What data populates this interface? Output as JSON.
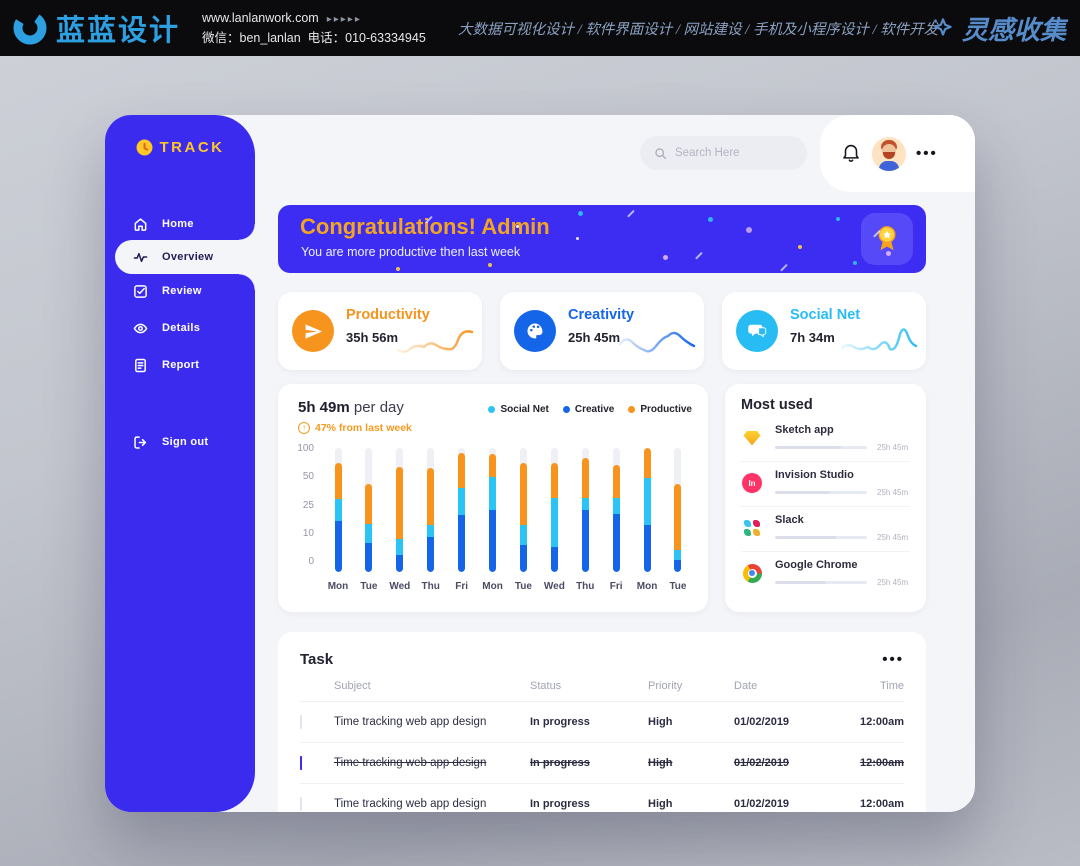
{
  "banner_top": {
    "logo_text": "蓝蓝设计",
    "url": "www.lanlanwork.com",
    "url_arrows": "▸▸▸▸▸",
    "wechat": "微信：ben_lanlan",
    "phone": "电话：010-63334945",
    "services": "大数据可视化设计  /  软件界面设计  /  网站建设  /  手机及小程序设计  /  软件开发",
    "collect": "灵感收集"
  },
  "sidebar": {
    "logo": "TRACK",
    "items": [
      {
        "label": "Home",
        "icon": "home-icon",
        "active": false
      },
      {
        "label": "Overview",
        "icon": "activity-icon",
        "active": true
      },
      {
        "label": "Review",
        "icon": "review-icon",
        "active": false
      },
      {
        "label": "Details",
        "icon": "details-icon",
        "active": false
      },
      {
        "label": "Report",
        "icon": "report-icon",
        "active": false
      },
      {
        "label": "Sign out",
        "icon": "signout-icon",
        "active": false
      }
    ]
  },
  "header": {
    "search_placeholder": "Search Here"
  },
  "congrats": {
    "title": "Congratulations! Admin",
    "subtitle": "You are more productive then last week"
  },
  "stats": [
    {
      "title": "Productivity",
      "value": "35h 56m",
      "color": "#F7941E",
      "icon": "paper-plane-icon"
    },
    {
      "title": "Creativity",
      "value": "25h 45m",
      "color": "#1565E8",
      "icon": "palette-icon"
    },
    {
      "title": "Social Net",
      "value": "7h 34m",
      "color": "#27BDF4",
      "icon": "chat-icon"
    }
  ],
  "chart_data": {
    "type": "stacked-bar",
    "title_strong": "5h 49m",
    "title_rest": " per day",
    "subtitle": "47% from last week",
    "y_ticks": [
      100,
      50,
      25,
      10,
      0
    ],
    "unit": "percent_of_max_track",
    "categories": [
      "Mon",
      "Tue",
      "Wed",
      "Thu",
      "Fri",
      "Mon",
      "Tue",
      "Wed",
      "Thu",
      "Fri",
      "Mon",
      "Tue"
    ],
    "legend": [
      {
        "name": "Social Net",
        "color": "#2CC4F4"
      },
      {
        "name": "Creative",
        "color": "#1565E8"
      },
      {
        "name": "Productive",
        "color": "#F8941D"
      }
    ],
    "series": [
      {
        "name": "Creative",
        "color": "#1565E8",
        "values": [
          41,
          23,
          14,
          28,
          46,
          50,
          22,
          20,
          50,
          47,
          38,
          10
        ]
      },
      {
        "name": "Social Net",
        "color": "#2CC4F4",
        "values": [
          18,
          16,
          13,
          10,
          22,
          27,
          16,
          40,
          10,
          13,
          38,
          8
        ]
      },
      {
        "name": "Productive",
        "color": "#F8941D",
        "values": [
          29,
          32,
          58,
          46,
          28,
          18,
          50,
          28,
          32,
          26,
          24,
          53
        ]
      }
    ]
  },
  "most_used": {
    "title": "Most used",
    "items": [
      {
        "name": "Sketch app",
        "icon": "sketch-icon",
        "time": "25h 45m",
        "fill": 72
      },
      {
        "name": "Invision Studio",
        "icon": "invision-icon",
        "time": "25h 45m",
        "fill": 60
      },
      {
        "name": "Slack",
        "icon": "slack-icon",
        "time": "25h 45m",
        "fill": 66
      },
      {
        "name": "Google Chrome",
        "icon": "chrome-icon",
        "time": "25h 45m",
        "fill": 55
      }
    ]
  },
  "task": {
    "title": "Task",
    "columns": [
      "Subject",
      "Status",
      "Priority",
      "Date",
      "Time"
    ],
    "rows": [
      {
        "subject": "Time tracking web app design",
        "status": "In progress",
        "priority": "High",
        "date": "01/02/2019",
        "time": "12:00am",
        "completed": false
      },
      {
        "subject": "Time tracking web app design",
        "status": "In progress",
        "priority": "High",
        "date": "01/02/2019",
        "time": "12:00am",
        "completed": true
      },
      {
        "subject": "Time tracking web app design",
        "status": "In progress",
        "priority": "High",
        "date": "01/02/2019",
        "time": "12:00am",
        "completed": false
      }
    ]
  }
}
